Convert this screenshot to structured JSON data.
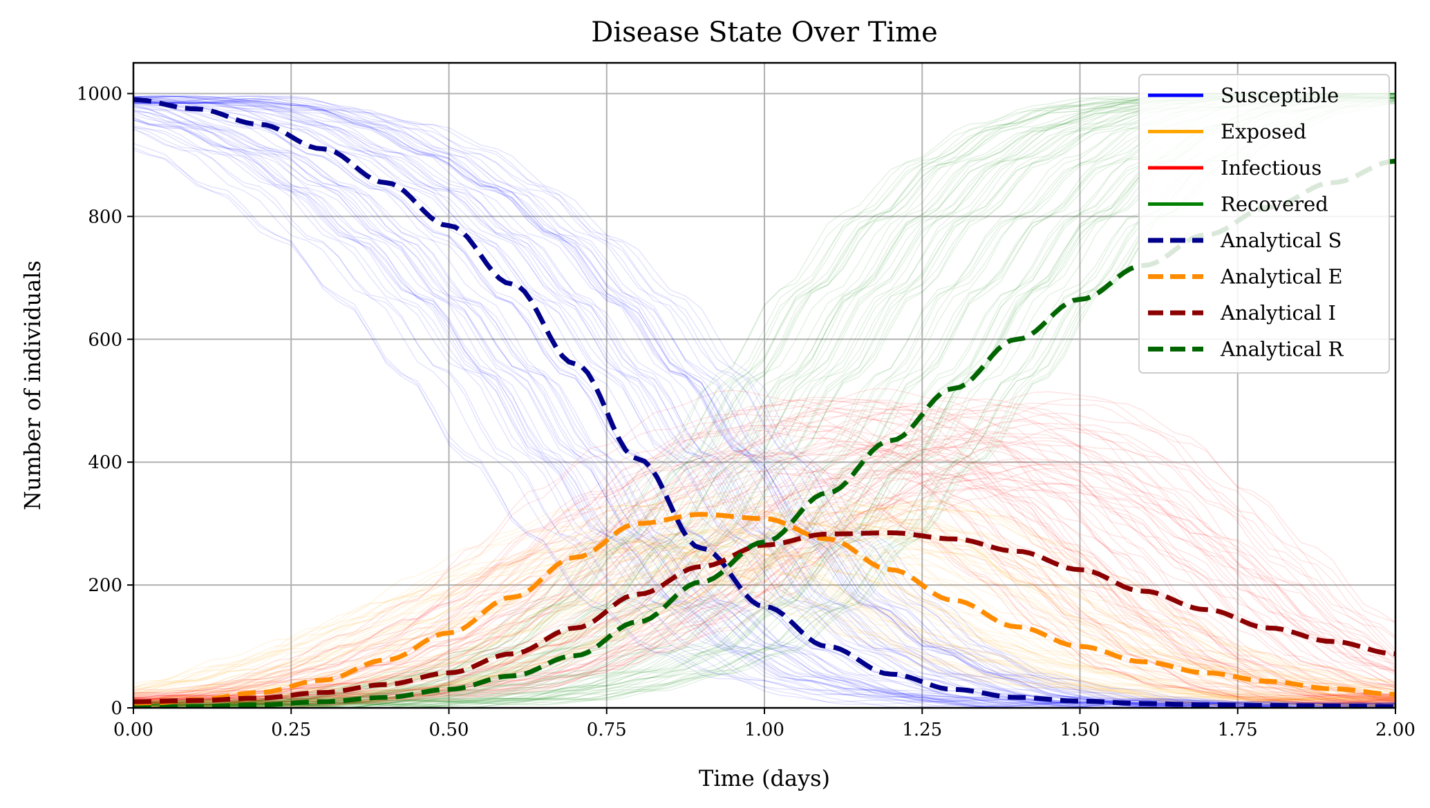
{
  "chart_data": {
    "type": "line",
    "title": "Disease State Over Time",
    "xlabel": "Time (days)",
    "ylabel": "Number of individuals",
    "xlim": [
      0,
      2
    ],
    "ylim": [
      0,
      1050
    ],
    "xticks": [
      0,
      0.25,
      0.5,
      0.75,
      1.0,
      1.25,
      1.5,
      1.75,
      2.0
    ],
    "xtick_labels": [
      "0.00",
      "0.25",
      "0.50",
      "0.75",
      "1.00",
      "1.25",
      "1.50",
      "1.75",
      "2.00"
    ],
    "yticks": [
      0,
      200,
      400,
      600,
      800,
      1000
    ],
    "ytick_labels": [
      "0",
      "200",
      "400",
      "600",
      "800",
      "1000"
    ],
    "grid": true,
    "legend_position": "top-right",
    "x": [
      0,
      0.1,
      0.2,
      0.3,
      0.4,
      0.5,
      0.6,
      0.7,
      0.8,
      0.9,
      1.0,
      1.1,
      1.2,
      1.3,
      1.4,
      1.5,
      1.6,
      1.7,
      1.8,
      1.9,
      2.0
    ],
    "series": [
      {
        "name": "Susceptible",
        "style": "stochastic",
        "color": "#0000ff",
        "values": [
          990,
          975,
          948,
          905,
          845,
          765,
          665,
          545,
          410,
          280,
          170,
          95,
          50,
          25,
          12,
          7,
          4,
          3,
          2,
          2,
          2
        ]
      },
      {
        "name": "Exposed",
        "style": "stochastic",
        "color": "#ffa500",
        "values": [
          5,
          12,
          25,
          45,
          75,
          115,
          160,
          210,
          260,
          295,
          310,
          295,
          250,
          190,
          135,
          90,
          60,
          40,
          25,
          15,
          10
        ]
      },
      {
        "name": "Infectious",
        "style": "stochastic",
        "color": "#ff0000",
        "values": [
          10,
          12,
          16,
          24,
          40,
          65,
          105,
          160,
          230,
          310,
          380,
          430,
          450,
          440,
          400,
          320,
          230,
          140,
          75,
          35,
          15
        ]
      },
      {
        "name": "Recovered",
        "style": "stochastic",
        "color": "#008000",
        "values": [
          0,
          1,
          3,
          6,
          10,
          18,
          32,
          55,
          95,
          165,
          270,
          400,
          540,
          680,
          800,
          890,
          945,
          975,
          990,
          995,
          998
        ]
      },
      {
        "name": "Analytical S",
        "style": "dashed",
        "color": "#00008b",
        "values": [
          990,
          975,
          950,
          910,
          855,
          785,
          690,
          560,
          405,
          260,
          165,
          100,
          55,
          30,
          17,
          11,
          7,
          5,
          4,
          3,
          2
        ]
      },
      {
        "name": "Analytical E",
        "style": "dashed",
        "color": "#ff8c00",
        "values": [
          5,
          13,
          25,
          45,
          78,
          122,
          180,
          245,
          300,
          315,
          308,
          275,
          225,
          175,
          132,
          100,
          75,
          57,
          43,
          31,
          22
        ]
      },
      {
        "name": "Analytical I",
        "style": "dashed",
        "color": "#8b0000",
        "values": [
          10,
          12,
          16,
          25,
          38,
          57,
          88,
          130,
          185,
          230,
          265,
          283,
          285,
          275,
          255,
          225,
          190,
          160,
          130,
          108,
          88
        ]
      },
      {
        "name": "Analytical R",
        "style": "dashed",
        "color": "#006400",
        "values": [
          0,
          2,
          5,
          10,
          17,
          30,
          52,
          85,
          140,
          205,
          270,
          350,
          435,
          520,
          600,
          665,
          720,
          770,
          815,
          855,
          890
        ]
      }
    ]
  }
}
